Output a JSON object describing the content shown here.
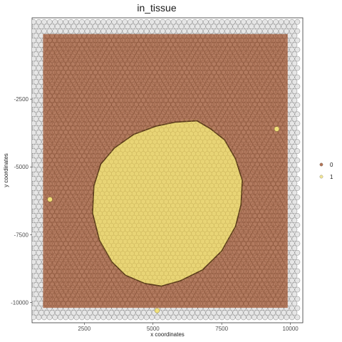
{
  "chart_data": {
    "type": "scatter",
    "title": "in_tissue",
    "xlabel": "x coordinates",
    "ylabel": "y coordinates",
    "xlim": [
      600,
      10450
    ],
    "ylim": [
      -10750,
      500
    ],
    "x_ticks": [
      2500,
      5000,
      7500,
      10000
    ],
    "y_ticks": [
      -2500,
      -5000,
      -7500,
      -10000
    ],
    "grid": false,
    "legend_position": "right",
    "series": [
      {
        "name": "0",
        "color": "#a0522d",
        "region": {
          "x_range": [
            1000,
            9900
          ],
          "y_range": [
            -10200,
            -100
          ]
        }
      },
      {
        "name": "1",
        "color": "#f0e07a",
        "tissue_outline": [
          [
            6600,
            -3300
          ],
          [
            7100,
            -3600
          ],
          [
            7600,
            -4000
          ],
          [
            8000,
            -4700
          ],
          [
            8250,
            -5500
          ],
          [
            8200,
            -6400
          ],
          [
            8000,
            -7200
          ],
          [
            7500,
            -8100
          ],
          [
            6800,
            -8800
          ],
          [
            6000,
            -9200
          ],
          [
            5300,
            -9400
          ],
          [
            4700,
            -9300
          ],
          [
            4000,
            -9000
          ],
          [
            3500,
            -8500
          ],
          [
            3050,
            -7700
          ],
          [
            2800,
            -6700
          ],
          [
            2850,
            -5700
          ],
          [
            3100,
            -4900
          ],
          [
            3600,
            -4300
          ],
          [
            4300,
            -3800
          ],
          [
            5100,
            -3500
          ],
          [
            5800,
            -3350
          ]
        ],
        "isolated_points": [
          [
            1250,
            -6200
          ],
          [
            9500,
            -3600
          ],
          [
            5150,
            -10300
          ]
        ]
      }
    ],
    "off_array_spots": {
      "x_range": [
        650,
        10300
      ],
      "y_range": [
        -10650,
        350
      ],
      "color": "#bdbdbd"
    },
    "legend": [
      {
        "label": "0",
        "color": "#a0522d"
      },
      {
        "label": "1",
        "color": "#f0e07a"
      }
    ]
  }
}
